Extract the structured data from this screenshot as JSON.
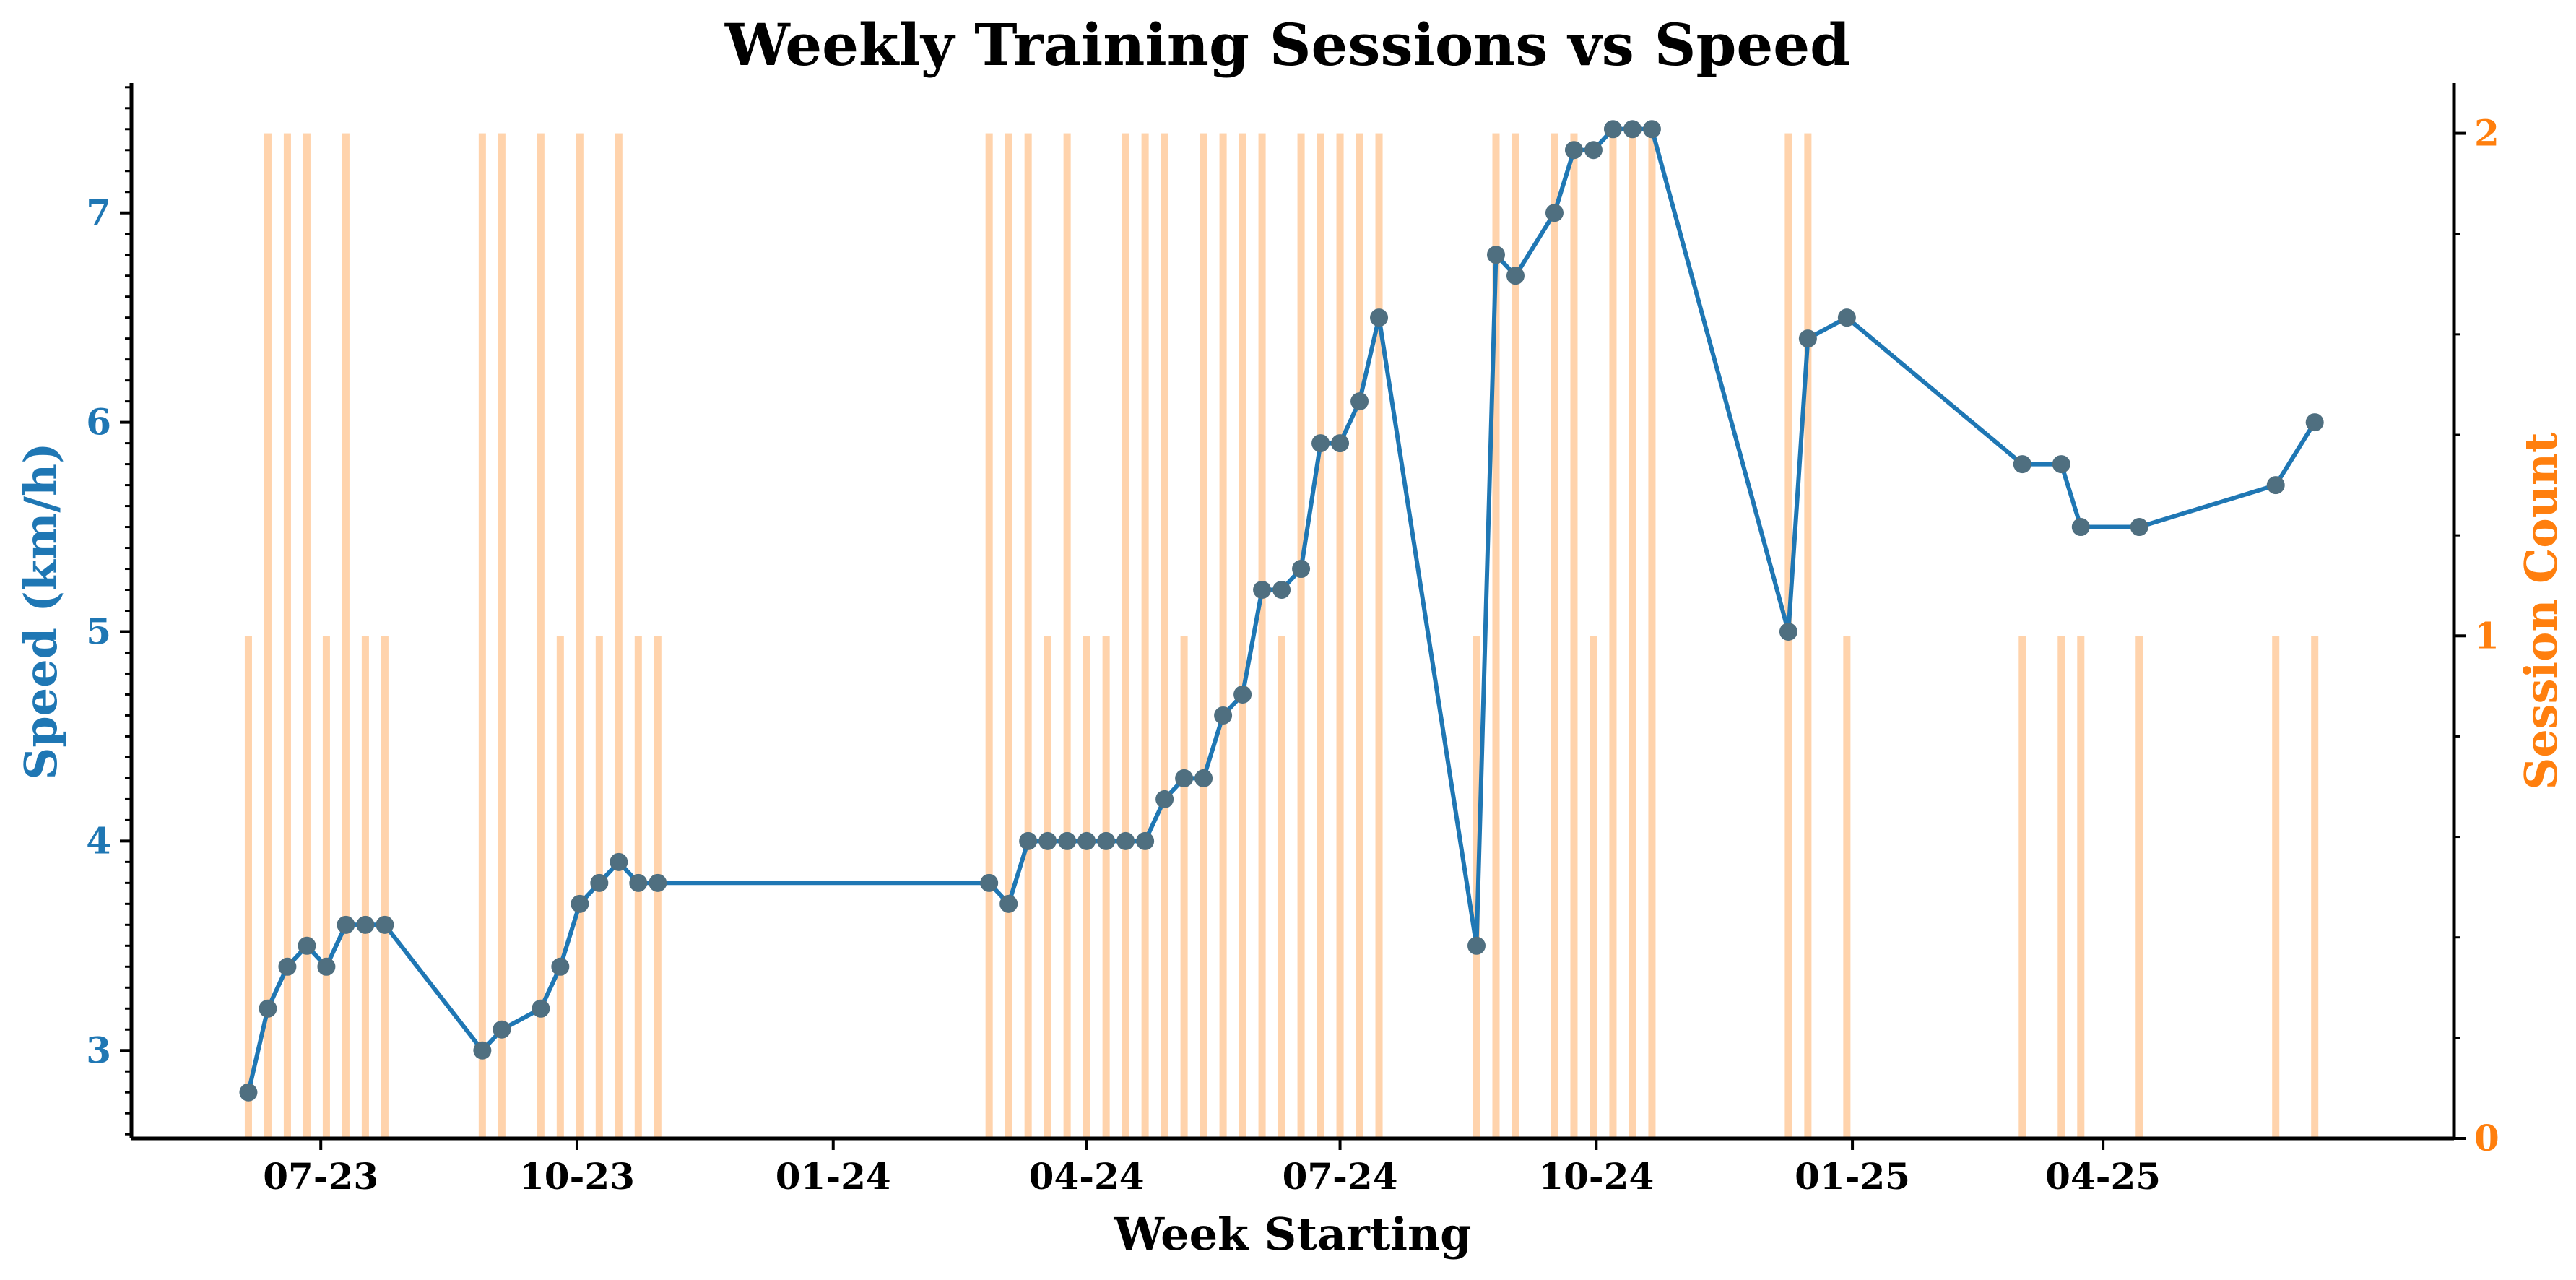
{
  "chart_data": {
    "type": "bar+line",
    "title": "Weekly Training Sessions vs Speed",
    "xlabel": "Week Starting",
    "ylabel_left": "Speed (km/h)",
    "ylabel_right": "Session Count",
    "x_tick_labels": [
      "07-23",
      "10-23",
      "01-24",
      "04-24",
      "07-24",
      "10-24",
      "01-25",
      "04-25"
    ],
    "x_tick_dates": [
      "2023-07-01",
      "2023-10-01",
      "2024-01-01",
      "2024-04-01",
      "2024-07-01",
      "2024-10-01",
      "2025-01-01",
      "2025-04-01"
    ],
    "x_range": [
      "2023-04-24",
      "2025-08-05"
    ],
    "y_left_range": [
      2.58,
      7.62
    ],
    "y_left_ticks": [
      "3",
      "4",
      "5",
      "6",
      "7"
    ],
    "y_right_range": [
      0,
      2.1
    ],
    "y_right_ticks": [
      "0",
      "1",
      "2"
    ],
    "colors": {
      "speed": "#1f77b4",
      "marker_edge": "#4f6f80",
      "sessions": "#ffd3ac",
      "right_axis": "#ff7f0e"
    },
    "series": [
      {
        "name": "Speed",
        "kind": "line",
        "dates": [
          "2023-06-05",
          "2023-06-12",
          "2023-06-19",
          "2023-06-26",
          "2023-07-03",
          "2023-07-10",
          "2023-07-17",
          "2023-07-24",
          "2023-08-28",
          "2023-09-04",
          "2023-09-18",
          "2023-09-25",
          "2023-10-02",
          "2023-10-09",
          "2023-10-16",
          "2023-10-23",
          "2023-10-30",
          "2024-02-26",
          "2024-03-04",
          "2024-03-11",
          "2024-03-18",
          "2024-03-25",
          "2024-04-01",
          "2024-04-08",
          "2024-04-15",
          "2024-04-22",
          "2024-04-29",
          "2024-05-06",
          "2024-05-13",
          "2024-05-20",
          "2024-05-27",
          "2024-06-03",
          "2024-06-10",
          "2024-06-17",
          "2024-06-24",
          "2024-07-01",
          "2024-07-08",
          "2024-07-15",
          "2024-08-19",
          "2024-08-26",
          "2024-09-02",
          "2024-09-16",
          "2024-09-23",
          "2024-09-30",
          "2024-10-07",
          "2024-10-14",
          "2024-10-21",
          "2024-12-09",
          "2024-12-16",
          "2024-12-30",
          "2025-03-03",
          "2025-03-17",
          "2025-03-24",
          "2025-04-14",
          "2025-06-02",
          "2025-06-16"
        ],
        "values": [
          2.8,
          3.2,
          3.4,
          3.5,
          3.4,
          3.6,
          3.6,
          3.6,
          3.0,
          3.1,
          3.2,
          3.4,
          3.7,
          3.8,
          3.9,
          3.8,
          3.8,
          3.8,
          3.7,
          4.0,
          4.0,
          4.0,
          4.0,
          4.0,
          4.0,
          4.0,
          4.2,
          4.3,
          4.3,
          4.6,
          4.7,
          5.2,
          5.2,
          5.3,
          5.9,
          5.9,
          6.1,
          6.5,
          3.5,
          6.8,
          6.7,
          7.0,
          7.3,
          7.3,
          7.4,
          7.4,
          7.4,
          5.0,
          6.4,
          6.5,
          5.8,
          5.8,
          5.5,
          5.5,
          5.7,
          6.0
        ]
      },
      {
        "name": "Sessions",
        "kind": "bar",
        "dates": [
          "2023-06-05",
          "2023-06-12",
          "2023-06-19",
          "2023-06-26",
          "2023-07-03",
          "2023-07-10",
          "2023-07-17",
          "2023-07-24",
          "2023-08-28",
          "2023-09-04",
          "2023-09-18",
          "2023-09-25",
          "2023-10-02",
          "2023-10-09",
          "2023-10-16",
          "2023-10-23",
          "2023-10-30",
          "2024-02-26",
          "2024-03-04",
          "2024-03-11",
          "2024-03-18",
          "2024-03-25",
          "2024-04-01",
          "2024-04-08",
          "2024-04-15",
          "2024-04-22",
          "2024-04-29",
          "2024-05-06",
          "2024-05-13",
          "2024-05-20",
          "2024-05-27",
          "2024-06-03",
          "2024-06-10",
          "2024-06-17",
          "2024-06-24",
          "2024-07-01",
          "2024-07-08",
          "2024-07-15",
          "2024-08-19",
          "2024-08-26",
          "2024-09-02",
          "2024-09-16",
          "2024-09-23",
          "2024-09-30",
          "2024-10-07",
          "2024-10-14",
          "2024-10-21",
          "2024-12-09",
          "2024-12-16",
          "2024-12-30",
          "2025-03-03",
          "2025-03-17",
          "2025-03-24",
          "2025-04-14",
          "2025-06-02",
          "2025-06-16"
        ],
        "values": [
          1,
          2,
          2,
          2,
          1,
          2,
          1,
          1,
          2,
          2,
          2,
          1,
          2,
          1,
          2,
          1,
          1,
          2,
          2,
          2,
          1,
          2,
          1,
          1,
          2,
          2,
          2,
          1,
          2,
          2,
          2,
          2,
          1,
          2,
          2,
          2,
          2,
          2,
          1,
          2,
          2,
          2,
          2,
          1,
          2,
          2,
          2,
          2,
          2,
          1,
          1,
          1,
          1,
          1,
          1,
          1
        ]
      }
    ]
  }
}
